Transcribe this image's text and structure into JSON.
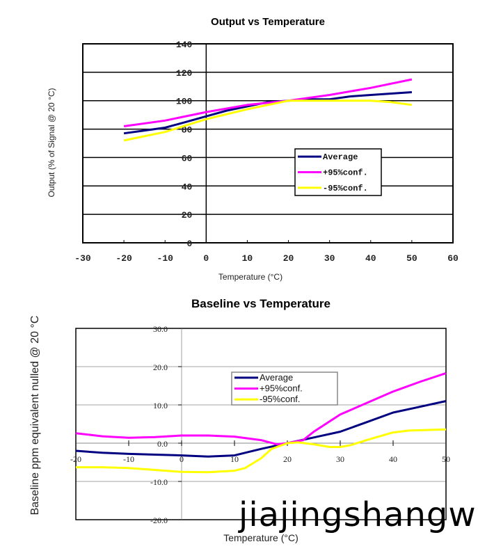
{
  "chart_data": [
    {
      "type": "line",
      "title": "Output vs Temperature",
      "xlabel": "Temperature (°C)",
      "ylabel": "Output (% of Signal @ 20 °C)",
      "xlim": [
        -30,
        60
      ],
      "ylim": [
        0,
        140
      ],
      "xticks": [
        -30,
        -20,
        -10,
        0,
        10,
        20,
        30,
        40,
        50,
        60
      ],
      "yticks": [
        0,
        20,
        40,
        60,
        80,
        100,
        120,
        140
      ],
      "grid": true,
      "legend": "center-right",
      "series": [
        {
          "name": "Average",
          "color": "#000080",
          "x": [
            -20,
            -15,
            -10,
            -5,
            0,
            5,
            10,
            15,
            20,
            25,
            30,
            35,
            40,
            45,
            50
          ],
          "y": [
            77,
            79,
            81,
            85,
            89,
            93,
            96,
            99,
            100,
            101,
            101,
            103,
            104,
            105,
            106
          ]
        },
        {
          "name": "+95%conf.",
          "color": "#ff00ff",
          "x": [
            -20,
            -10,
            0,
            10,
            20,
            30,
            40,
            50
          ],
          "y": [
            82,
            86,
            92,
            97,
            100,
            104,
            109,
            115
          ]
        },
        {
          "name": "-95%conf.",
          "color": "#ffff00",
          "x": [
            -20,
            -10,
            0,
            10,
            20,
            30,
            40,
            45,
            50
          ],
          "y": [
            72,
            78,
            87,
            94,
            100,
            100,
            100,
            99,
            97
          ]
        }
      ]
    },
    {
      "type": "line",
      "title": "Baseline vs Temperature",
      "xlabel": "Temperature (°C)",
      "ylabel": "Baseline ppm equivalent nulled @ 20 °C",
      "xlim": [
        -20,
        50
      ],
      "ylim": [
        -20,
        30
      ],
      "xticks": [
        -20,
        -10,
        0,
        10,
        20,
        30,
        40,
        50
      ],
      "yticks": [
        "-20.0",
        "-10.0",
        "0.0",
        "10.0",
        "20.0",
        "30.0"
      ],
      "grid": true,
      "legend": "top-center",
      "series": [
        {
          "name": "Average",
          "color": "#000080",
          "x": [
            -20,
            -15,
            -10,
            -5,
            0,
            5,
            10,
            15,
            20,
            25,
            30,
            35,
            40,
            45,
            50
          ],
          "y": [
            -2,
            -2.5,
            -2.8,
            -3,
            -3.2,
            -3.5,
            -3.2,
            -1.5,
            0,
            1.5,
            3,
            5.5,
            8,
            9.5,
            11
          ]
        },
        {
          "name": "+95%conf.",
          "color": "#ff00ff",
          "x": [
            -20,
            -15,
            -10,
            -5,
            0,
            5,
            10,
            15,
            18,
            20,
            23,
            25,
            30,
            35,
            40,
            45,
            50
          ],
          "y": [
            2.6,
            1.8,
            1.4,
            1.6,
            2,
            2,
            1.7,
            0.8,
            -0.3,
            0,
            0.8,
            3,
            7.5,
            10.5,
            13.5,
            16,
            18.3
          ]
        },
        {
          "name": "-95%conf.",
          "color": "#ffff00",
          "x": [
            -20,
            -15,
            -10,
            -5,
            0,
            5,
            10,
            12,
            15,
            17,
            20,
            22,
            25,
            28,
            30,
            32,
            35,
            40,
            43,
            50
          ],
          "y": [
            -6.3,
            -6.3,
            -6.5,
            -7,
            -7.5,
            -7.6,
            -7.2,
            -6.5,
            -4,
            -1.5,
            0,
            0.2,
            -0.3,
            -1,
            -1,
            -0.5,
            0.8,
            2.8,
            3.3,
            3.6
          ]
        }
      ]
    }
  ],
  "watermark": "jiajingshangwu"
}
